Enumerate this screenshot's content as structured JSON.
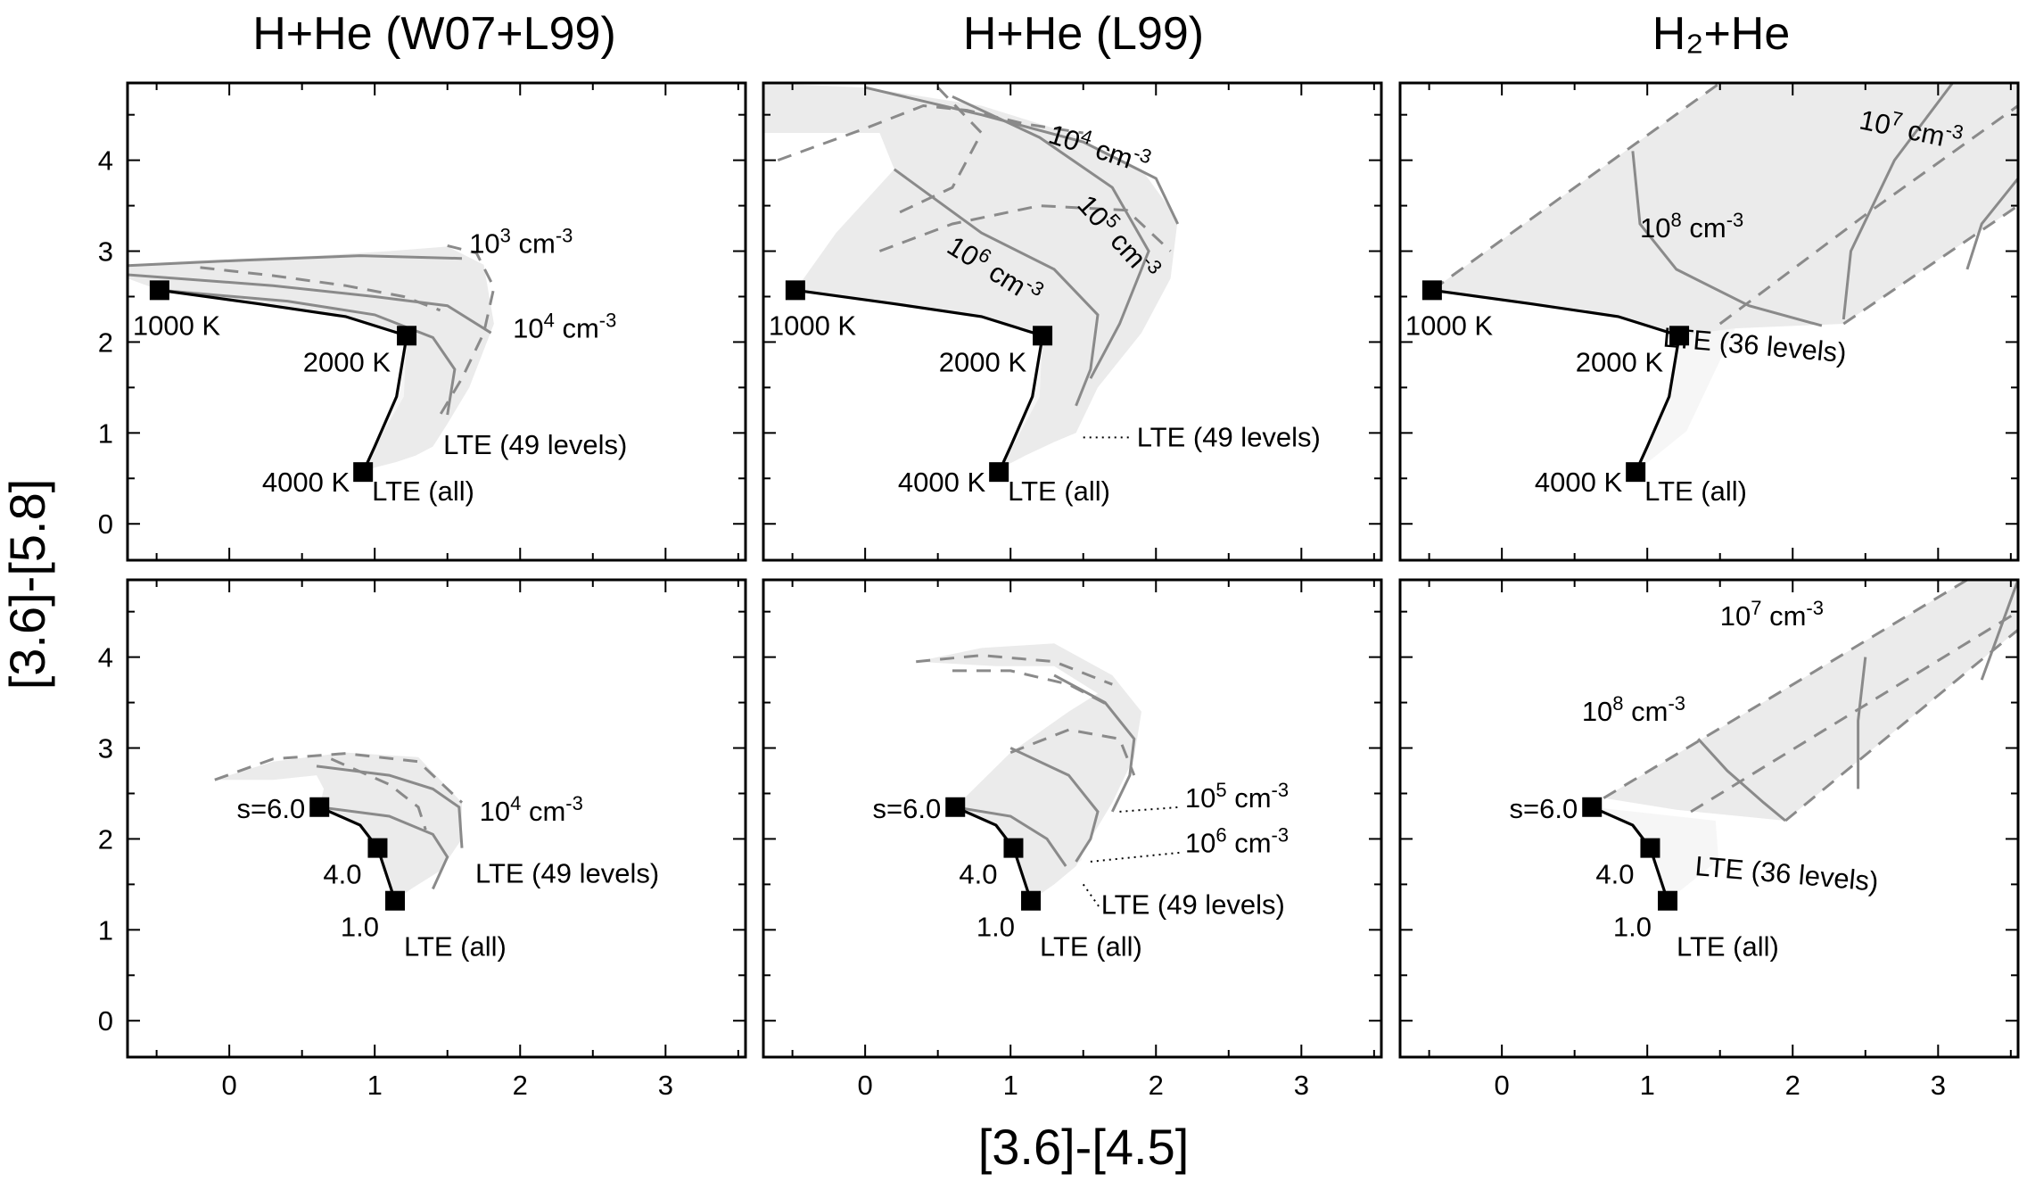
{
  "figure": {
    "xlabel": "[3.6]-[4.5]",
    "ylabel": "[3.6]-[5.8]",
    "column_titles": [
      "H+He (W07+L99)",
      "H+He (L99)",
      "H₂+He"
    ],
    "x_ticks": [
      "0",
      "1",
      "2",
      "3"
    ],
    "y_ticks": [
      "0",
      "1",
      "2",
      "3",
      "4"
    ]
  },
  "chart_data": [
    {
      "type": "line",
      "row": "temperature",
      "title": "H+He (W07+L99)",
      "xlim": [
        -0.7,
        3.55
      ],
      "ylim": [
        -0.4,
        4.85
      ],
      "lte_track": {
        "x": [
          -0.48,
          0.2,
          0.8,
          1.22,
          1.15,
          1.0,
          0.92
        ],
        "y": [
          2.57,
          2.42,
          2.28,
          2.07,
          1.4,
          0.85,
          0.57
        ]
      },
      "points": [
        {
          "label": "1000 K",
          "x": -0.48,
          "y": 2.57
        },
        {
          "label": "2000 K",
          "x": 1.22,
          "y": 2.07
        },
        {
          "label": "4000 K",
          "x": 0.92,
          "y": 0.57
        }
      ],
      "lte_label": "LTE (all)",
      "nlte_label": "LTE (49 levels)",
      "region": {
        "x": [
          -0.7,
          -0.2,
          0.6,
          1.1,
          1.5,
          1.75,
          1.82,
          1.65,
          1.5,
          1.4,
          1.28,
          1.15,
          1.0,
          0.92,
          0.9,
          1.2,
          1.22,
          0.8,
          0.2,
          -0.48,
          -0.7
        ],
        "y": [
          2.85,
          2.9,
          2.95,
          3.0,
          3.05,
          2.85,
          2.2,
          1.5,
          1.1,
          0.85,
          0.75,
          0.68,
          0.62,
          0.57,
          0.57,
          1.4,
          2.07,
          2.28,
          2.42,
          2.57,
          2.7
        ]
      },
      "density_lines": [
        {
          "label": "10³ cm⁻³",
          "x": [
            -0.7,
            0.1,
            0.9,
            1.6
          ],
          "y": [
            2.84,
            2.9,
            2.95,
            2.92
          ]
        },
        {
          "label": "10⁴ cm⁻³",
          "x": [
            -0.7,
            0.3,
            1.0,
            1.5,
            1.8
          ],
          "y": [
            2.74,
            2.62,
            2.5,
            2.4,
            2.1
          ]
        },
        {
          "label": "",
          "x": [
            -0.48,
            0.4,
            1.0,
            1.4,
            1.55,
            1.5
          ],
          "y": [
            2.57,
            2.45,
            2.3,
            2.05,
            1.7,
            1.2
          ]
        }
      ],
      "temperature_lines": [
        {
          "x": [
            1.5,
            1.7,
            1.82,
            1.75,
            1.6,
            1.45
          ],
          "y": [
            3.06,
            2.98,
            2.6,
            2.1,
            1.6,
            1.2
          ]
        },
        {
          "x": [
            -0.2,
            0.3,
            0.8,
            1.2,
            1.45
          ],
          "y": [
            2.82,
            2.73,
            2.62,
            2.5,
            2.35
          ]
        }
      ],
      "annotations": [
        {
          "text": "10³ cm⁻³",
          "x": 1.65,
          "y": 2.98
        },
        {
          "text": "10⁴ cm⁻³",
          "x": 1.95,
          "y": 2.05
        }
      ]
    },
    {
      "type": "line",
      "row": "temperature",
      "title": "H+He (L99)",
      "xlim": [
        -0.7,
        3.55
      ],
      "ylim": [
        -0.4,
        4.85
      ],
      "lte_track": {
        "x": [
          -0.48,
          0.2,
          0.8,
          1.22,
          1.15,
          1.0,
          0.92
        ],
        "y": [
          2.57,
          2.42,
          2.28,
          2.07,
          1.4,
          0.85,
          0.57
        ]
      },
      "points": [
        {
          "label": "1000 K",
          "x": -0.48,
          "y": 2.57
        },
        {
          "label": "2000 K",
          "x": 1.22,
          "y": 2.07
        },
        {
          "label": "4000 K",
          "x": 0.92,
          "y": 0.57
        }
      ],
      "lte_label": "LTE (all)",
      "nlte_label": "LTE (49 levels)",
      "region": {
        "x": [
          -0.7,
          0.0,
          0.8,
          1.4,
          1.9,
          2.15,
          2.1,
          1.9,
          1.6,
          1.45,
          1.3,
          1.1,
          0.92,
          0.92,
          1.2,
          1.22,
          0.8,
          0.2,
          -0.48,
          -0.2,
          0.2,
          0.1,
          -0.7
        ],
        "y": [
          4.85,
          4.8,
          4.6,
          4.3,
          3.9,
          3.35,
          2.7,
          2.1,
          1.5,
          1.0,
          0.9,
          0.75,
          0.6,
          0.57,
          1.4,
          2.07,
          2.28,
          2.42,
          2.57,
          3.2,
          3.9,
          4.3,
          4.3
        ]
      },
      "density_lines": [
        {
          "label": "10⁴ cm⁻³",
          "x": [
            0.0,
            0.8,
            1.5,
            2.0,
            2.15
          ],
          "y": [
            4.8,
            4.5,
            4.2,
            3.8,
            3.3
          ]
        },
        {
          "label": "10⁵ cm⁻³",
          "x": [
            0.6,
            1.2,
            1.7,
            1.95,
            1.75,
            1.55
          ],
          "y": [
            4.7,
            4.25,
            3.7,
            3.0,
            2.2,
            1.6
          ]
        },
        {
          "label": "10⁶ cm⁻³",
          "x": [
            0.2,
            0.8,
            1.3,
            1.6,
            1.55,
            1.45
          ],
          "y": [
            3.9,
            3.2,
            2.8,
            2.3,
            1.7,
            1.3
          ]
        }
      ],
      "temperature_lines": [
        {
          "x": [
            -0.6,
            0.0,
            0.4,
            0.7,
            1.1,
            1.5
          ],
          "y": [
            4.0,
            4.35,
            4.6,
            4.55,
            4.4,
            4.3
          ]
        },
        {
          "x": [
            0.1,
            0.6,
            1.2,
            1.8,
            2.1
          ],
          "y": [
            3.0,
            3.3,
            3.5,
            3.45,
            3.0
          ]
        },
        {
          "x": [
            0.5,
            0.8,
            0.6,
            0.2
          ],
          "y": [
            4.8,
            4.3,
            3.7,
            3.4
          ]
        }
      ],
      "annotations": [
        {
          "text": "10⁴ cm⁻³",
          "x": 1.25,
          "y": 4.2
        },
        {
          "text": "10⁵ cm⁻³",
          "x": 1.45,
          "y": 3.5
        },
        {
          "text": "10⁶ cm⁻³",
          "x": 0.55,
          "y": 3.0
        }
      ]
    },
    {
      "type": "line",
      "row": "temperature",
      "title": "H₂+He",
      "xlim": [
        -0.7,
        3.55
      ],
      "ylim": [
        -0.4,
        4.85
      ],
      "lte_track": {
        "x": [
          -0.48,
          0.2,
          0.8,
          1.22,
          1.15,
          1.0,
          0.92
        ],
        "y": [
          2.57,
          2.42,
          2.28,
          2.07,
          1.4,
          0.85,
          0.57
        ]
      },
      "points": [
        {
          "label": "1000 K",
          "x": -0.48,
          "y": 2.57
        },
        {
          "label": "2000 K",
          "x": 1.22,
          "y": 2.07
        },
        {
          "label": "4000 K",
          "x": 0.92,
          "y": 0.57
        }
      ],
      "lte_label": "LTE (all)",
      "nlte_label": "LTE (36 levels)",
      "region": {
        "x": [
          -0.48,
          1.5,
          3.55,
          3.55,
          2.35,
          1.6,
          1.22,
          0.8,
          0.2
        ],
        "y": [
          2.57,
          4.85,
          4.85,
          3.5,
          2.2,
          2.15,
          2.07,
          2.28,
          2.42
        ]
      },
      "density_lines": [
        {
          "label": "10⁸ cm⁻³",
          "x": [
            0.9,
            0.95,
            1.2,
            1.7,
            2.2
          ],
          "y": [
            4.1,
            3.3,
            2.8,
            2.4,
            2.18
          ]
        },
        {
          "label": "10⁷ cm⁻³",
          "x": [
            3.1,
            2.7,
            2.4,
            2.35
          ],
          "y": [
            4.85,
            4.0,
            3.0,
            2.25
          ]
        },
        {
          "label": "",
          "x": [
            3.55,
            3.3,
            3.2
          ],
          "y": [
            3.8,
            3.3,
            2.8
          ]
        }
      ],
      "temperature_lines": [
        {
          "x": [
            1.5,
            2.5,
            3.55
          ],
          "y": [
            2.2,
            3.4,
            4.6
          ]
        },
        {
          "x": [
            -0.48,
            1.5,
            3.55
          ],
          "y": [
            2.57,
            4.85,
            4.85
          ]
        },
        {
          "x": [
            2.35,
            3.55
          ],
          "y": [
            2.2,
            3.5
          ]
        }
      ],
      "annotations": [
        {
          "text": "10⁷ cm⁻³",
          "x": 2.45,
          "y": 4.35
        },
        {
          "text": "10⁸ cm⁻³",
          "x": 0.95,
          "y": 3.15
        }
      ]
    },
    {
      "type": "line",
      "row": "spectral_index",
      "title": "H+He (W07+L99)",
      "xlim": [
        -0.7,
        3.55
      ],
      "ylim": [
        -0.4,
        4.85
      ],
      "lte_track": {
        "x": [
          0.62,
          0.9,
          1.02,
          1.14
        ],
        "y": [
          2.35,
          2.15,
          1.9,
          1.32
        ]
      },
      "points": [
        {
          "label": "s=6.0",
          "x": 0.62,
          "y": 2.35
        },
        {
          "label": "4.0",
          "x": 1.02,
          "y": 1.9
        },
        {
          "label": "1.0",
          "x": 1.14,
          "y": 1.32
        }
      ],
      "lte_label": "LTE (all)",
      "nlte_label": "LTE (49 levels)",
      "region": {
        "x": [
          -0.1,
          0.3,
          0.8,
          1.3,
          1.6,
          1.6,
          1.45,
          1.25,
          1.14,
          1.02,
          0.9,
          0.62,
          0.65,
          0.6,
          0.3
        ],
        "y": [
          2.65,
          2.85,
          2.95,
          2.9,
          2.4,
          2.0,
          1.65,
          1.45,
          1.32,
          1.9,
          2.15,
          2.35,
          2.55,
          2.7,
          2.65
        ]
      },
      "density_lines": [
        {
          "label": "10⁴ cm⁻³",
          "x": [
            0.6,
            1.1,
            1.4,
            1.58,
            1.6
          ],
          "y": [
            2.8,
            2.7,
            2.55,
            2.35,
            1.9
          ]
        },
        {
          "label": "",
          "x": [
            0.62,
            1.1,
            1.4,
            1.5,
            1.4
          ],
          "y": [
            2.35,
            2.25,
            2.05,
            1.8,
            1.45
          ]
        }
      ],
      "temperature_lines": [
        {
          "x": [
            -0.1,
            0.3,
            0.8,
            1.3,
            1.6
          ],
          "y": [
            2.65,
            2.88,
            2.94,
            2.85,
            2.4
          ]
        },
        {
          "x": [
            0.7,
            1.1,
            1.3,
            1.35
          ],
          "y": [
            2.88,
            2.6,
            2.35,
            2.1
          ]
        }
      ],
      "annotations": [
        {
          "text": "10⁴ cm⁻³",
          "x": 1.72,
          "y": 2.2
        }
      ]
    },
    {
      "type": "line",
      "row": "spectral_index",
      "title": "H+He (L99)",
      "xlim": [
        -0.7,
        3.55
      ],
      "ylim": [
        -0.4,
        4.85
      ],
      "lte_track": {
        "x": [
          0.62,
          0.9,
          1.02,
          1.14
        ],
        "y": [
          2.35,
          2.15,
          1.9,
          1.32
        ]
      },
      "points": [
        {
          "label": "s=6.0",
          "x": 0.62,
          "y": 2.35
        },
        {
          "label": "4.0",
          "x": 1.02,
          "y": 1.9
        },
        {
          "label": "1.0",
          "x": 1.14,
          "y": 1.32
        }
      ],
      "lte_label": "LTE (all)",
      "nlte_label": "LTE (49 levels)",
      "region": {
        "x": [
          0.35,
          0.8,
          1.3,
          1.7,
          1.9,
          1.85,
          1.7,
          1.55,
          1.45,
          1.3,
          1.14,
          1.02,
          0.9,
          0.62,
          1.0,
          1.4,
          1.6,
          1.3,
          0.9
        ],
        "y": [
          3.95,
          4.1,
          4.15,
          3.8,
          3.4,
          2.9,
          2.4,
          2.0,
          1.7,
          1.5,
          1.32,
          1.9,
          2.15,
          2.35,
          2.95,
          3.4,
          3.6,
          3.9,
          3.9
        ]
      },
      "density_lines": [
        {
          "label": "10⁵ cm⁻³",
          "x": [
            1.3,
            1.65,
            1.85,
            1.82,
            1.7
          ],
          "y": [
            3.8,
            3.5,
            3.1,
            2.7,
            2.3
          ]
        },
        {
          "label": "10⁶ cm⁻³",
          "x": [
            1.0,
            1.4,
            1.6,
            1.55,
            1.45
          ],
          "y": [
            3.0,
            2.7,
            2.3,
            2.0,
            1.75
          ]
        },
        {
          "label": "",
          "x": [
            0.62,
            1.0,
            1.25,
            1.38
          ],
          "y": [
            2.35,
            2.25,
            2.0,
            1.7
          ]
        }
      ],
      "temperature_lines": [
        {
          "x": [
            0.35,
            0.8,
            1.3,
            1.7
          ],
          "y": [
            3.95,
            4.02,
            3.95,
            3.7
          ]
        },
        {
          "x": [
            0.6,
            1.0,
            1.4,
            1.7
          ],
          "y": [
            3.85,
            3.85,
            3.7,
            3.45
          ]
        },
        {
          "x": [
            1.0,
            1.4,
            1.75,
            1.85
          ],
          "y": [
            2.95,
            3.2,
            3.1,
            2.7
          ]
        }
      ],
      "annotations": [
        {
          "text": "10⁵ cm⁻³",
          "x": 2.2,
          "y": 2.35
        },
        {
          "text": "10⁶ cm⁻³",
          "x": 2.2,
          "y": 1.85
        }
      ]
    },
    {
      "type": "line",
      "row": "spectral_index",
      "title": "H₂+He",
      "xlim": [
        -0.7,
        3.55
      ],
      "ylim": [
        -0.4,
        4.85
      ],
      "lte_track": {
        "x": [
          0.62,
          0.9,
          1.02,
          1.14
        ],
        "y": [
          2.35,
          2.15,
          1.9,
          1.32
        ]
      },
      "points": [
        {
          "label": "s=6.0",
          "x": 0.62,
          "y": 2.35
        },
        {
          "label": "4.0",
          "x": 1.02,
          "y": 1.9
        },
        {
          "label": "1.0",
          "x": 1.14,
          "y": 1.32
        }
      ],
      "lte_label": "LTE (all)",
      "nlte_label": "LTE (36 levels)",
      "region": {
        "x": [
          0.7,
          3.2,
          3.55,
          3.55,
          1.95,
          1.2,
          0.7
        ],
        "y": [
          2.45,
          4.85,
          4.85,
          4.3,
          2.2,
          2.32,
          2.45
        ]
      },
      "density_lines": [
        {
          "label": "10⁸ cm⁻³",
          "x": [
            1.35,
            1.55,
            1.8,
            1.95
          ],
          "y": [
            3.1,
            2.75,
            2.4,
            2.2
          ]
        },
        {
          "label": "10⁷ cm⁻³",
          "x": [
            2.5,
            2.45,
            2.45
          ],
          "y": [
            4.0,
            3.3,
            2.55
          ]
        },
        {
          "label": "",
          "x": [
            3.55,
            3.3
          ],
          "y": [
            4.85,
            3.75
          ]
        }
      ],
      "temperature_lines": [
        {
          "x": [
            0.7,
            3.2
          ],
          "y": [
            2.45,
            4.85
          ]
        },
        {
          "x": [
            1.3,
            3.55
          ],
          "y": [
            2.3,
            4.5
          ]
        },
        {
          "x": [
            1.95,
            3.55
          ],
          "y": [
            2.2,
            4.3
          ]
        }
      ],
      "annotations": [
        {
          "text": "10⁷ cm⁻³",
          "x": 1.5,
          "y": 4.35
        },
        {
          "text": "10⁸ cm⁻³",
          "x": 0.55,
          "y": 3.3
        }
      ]
    }
  ]
}
